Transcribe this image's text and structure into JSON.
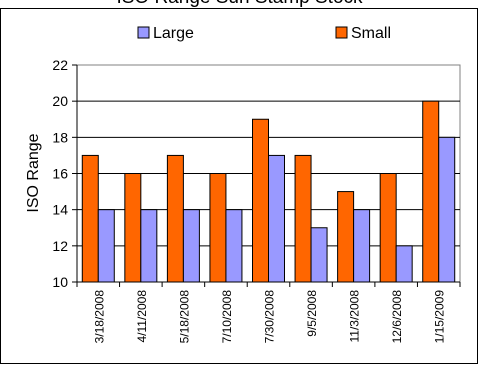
{
  "chart_data": {
    "type": "bar",
    "title": "ISO Range Sun Stamp Stock",
    "xlabel": "",
    "ylabel": "ISO Range",
    "categories": [
      "3/18/2008",
      "4/11/2008",
      "5/18/2008",
      "7/10/2008",
      "7/30/2008",
      "9/5/2008",
      "11/3/2008",
      "12/6/2008",
      "1/15/2009"
    ],
    "series": [
      {
        "name": "Large",
        "color": "#9999ff",
        "values": [
          14,
          14,
          14,
          14,
          17,
          13,
          14,
          12,
          18
        ]
      },
      {
        "name": "Small",
        "color": "#ff6600",
        "values": [
          17,
          16,
          17,
          16,
          19,
          17,
          15,
          16,
          20
        ]
      }
    ],
    "ylim": [
      10,
      22
    ],
    "yticks": [
      10,
      12,
      14,
      16,
      18,
      20,
      22
    ],
    "grid": true,
    "legend_position": "top"
  }
}
